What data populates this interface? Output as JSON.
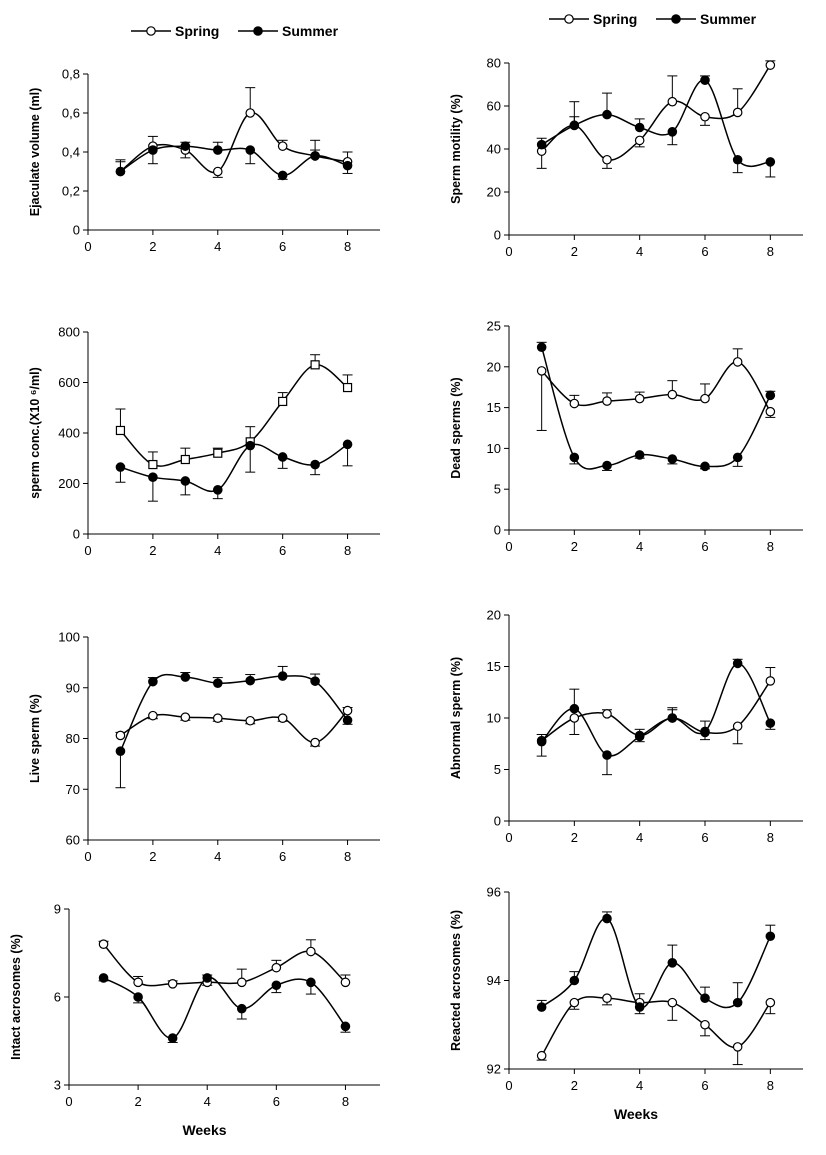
{
  "colors": {
    "line": "#000000",
    "background": "#ffffff",
    "open_marker_fill": "#ffffff",
    "filled_marker_fill": "#000000"
  },
  "chart_data": [
    {
      "type": "line",
      "ylabel": "Ejaculate volume (ml)",
      "xlabel": "",
      "xlim": [
        0,
        9
      ],
      "xticks": [
        0,
        2,
        4,
        6,
        8
      ],
      "ylim": [
        0,
        0.8
      ],
      "yticks": [
        0,
        0.2,
        0.4,
        0.6,
        0.8
      ],
      "ytick_labels": [
        "0",
        "0,2",
        "0,4",
        "0,6",
        "0,8"
      ],
      "grid": false,
      "legend": [
        "Spring",
        "Summer"
      ],
      "series": [
        {
          "name": "Spring",
          "marker": "open-circle",
          "x": [
            1,
            2,
            3,
            4,
            5,
            6,
            7,
            8
          ],
          "y": [
            0.3,
            0.43,
            0.41,
            0.3,
            0.6,
            0.43,
            0.38,
            0.35
          ],
          "err": [
            0.05,
            0.05,
            0.04,
            0.03,
            0.13,
            0.03,
            0.08,
            0.05
          ]
        },
        {
          "name": "Summer",
          "marker": "filled-circle",
          "x": [
            1,
            2,
            3,
            4,
            5,
            6,
            7,
            8
          ],
          "y": [
            0.3,
            0.41,
            0.43,
            0.41,
            0.41,
            0.28,
            0.38,
            0.33
          ],
          "err": [
            0.06,
            0.07,
            0.02,
            0.04,
            0.07,
            0.02,
            0.03,
            0.04
          ]
        }
      ]
    },
    {
      "type": "line",
      "ylabel": "Sperm motility (%)",
      "xlabel": "",
      "xlim": [
        0,
        9
      ],
      "xticks": [
        0,
        2,
        4,
        6,
        8
      ],
      "ylim": [
        0,
        80
      ],
      "yticks": [
        0,
        20,
        40,
        60,
        80
      ],
      "ytick_labels": [
        "0",
        "20",
        "40",
        "60",
        "80"
      ],
      "grid": false,
      "legend": [
        "Spring",
        "Summer"
      ],
      "series": [
        {
          "name": "Spring",
          "marker": "open-circle",
          "x": [
            1,
            2,
            3,
            4,
            5,
            6,
            7,
            8
          ],
          "y": [
            39,
            51,
            35,
            44,
            62,
            55,
            57,
            79
          ],
          "err": [
            8,
            4,
            4,
            3,
            12,
            4,
            11,
            2
          ]
        },
        {
          "name": "Summer",
          "marker": "filled-circle",
          "x": [
            1,
            2,
            3,
            4,
            5,
            6,
            7,
            8
          ],
          "y": [
            42,
            51,
            56,
            50,
            48,
            72,
            35,
            34
          ],
          "err": [
            3,
            11,
            10,
            4,
            6,
            2,
            6,
            7
          ]
        }
      ]
    },
    {
      "type": "line",
      "ylabel": "sperm conc.(X10 ⁶/ml)",
      "xlabel": "",
      "xlim": [
        0,
        9
      ],
      "xticks": [
        0,
        2,
        4,
        6,
        8
      ],
      "ylim": [
        0,
        800
      ],
      "yticks": [
        0,
        200,
        400,
        600,
        800
      ],
      "ytick_labels": [
        "0",
        "200",
        "400",
        "600",
        "800"
      ],
      "grid": false,
      "series": [
        {
          "name": "Spring",
          "marker": "open-square",
          "x": [
            1,
            2,
            3,
            4,
            5,
            6,
            7,
            8
          ],
          "y": [
            410,
            275,
            295,
            320,
            365,
            525,
            670,
            580
          ],
          "err": [
            85,
            50,
            45,
            20,
            60,
            35,
            40,
            50
          ]
        },
        {
          "name": "Summer",
          "marker": "filled-circle",
          "x": [
            1,
            2,
            3,
            4,
            5,
            6,
            7,
            8
          ],
          "y": [
            265,
            225,
            210,
            175,
            350,
            305,
            275,
            355
          ],
          "err": [
            60,
            95,
            55,
            35,
            105,
            45,
            40,
            85
          ]
        }
      ]
    },
    {
      "type": "line",
      "ylabel": "Dead sperms (%)",
      "xlabel": "",
      "xlim": [
        0,
        9
      ],
      "xticks": [
        0,
        2,
        4,
        6,
        8
      ],
      "ylim": [
        0,
        25
      ],
      "yticks": [
        0,
        5,
        10,
        15,
        20,
        25
      ],
      "ytick_labels": [
        "0",
        "5",
        "10",
        "15",
        "20",
        "25"
      ],
      "grid": false,
      "series": [
        {
          "name": "Spring",
          "marker": "open-circle",
          "x": [
            1,
            2,
            3,
            4,
            5,
            6,
            7,
            8
          ],
          "y": [
            19.5,
            15.5,
            15.8,
            16.1,
            16.6,
            16.1,
            20.6,
            14.5
          ],
          "err": [
            7.3,
            1.0,
            1.0,
            0.8,
            1.7,
            1.8,
            1.6,
            0.7
          ]
        },
        {
          "name": "Summer",
          "marker": "filled-circle",
          "x": [
            1,
            2,
            3,
            4,
            5,
            6,
            7,
            8
          ],
          "y": [
            22.4,
            8.9,
            7.9,
            9.2,
            8.7,
            7.8,
            8.9,
            16.5
          ],
          "err": [
            0.6,
            0.8,
            0.6,
            0.4,
            0.6,
            0.3,
            1.1,
            0.5
          ]
        }
      ]
    },
    {
      "type": "line",
      "ylabel": "Live sperm (%)",
      "xlabel": "",
      "xlim": [
        0,
        9
      ],
      "xticks": [
        0,
        2,
        4,
        6,
        8
      ],
      "ylim": [
        60,
        100
      ],
      "yticks": [
        60,
        70,
        80,
        90,
        100
      ],
      "ytick_labels": [
        "60",
        "70",
        "80",
        "90",
        "100"
      ],
      "grid": false,
      "series": [
        {
          "name": "Spring",
          "marker": "open-circle",
          "x": [
            1,
            2,
            3,
            4,
            5,
            6,
            7,
            8
          ],
          "y": [
            80.6,
            84.5,
            84.2,
            84.0,
            83.5,
            84.0,
            79.2,
            85.5
          ],
          "err": [
            0.6,
            0.6,
            0.6,
            0.6,
            0.6,
            0.6,
            0.7,
            0.6
          ]
        },
        {
          "name": "Summer",
          "marker": "filled-circle",
          "x": [
            1,
            2,
            3,
            4,
            5,
            6,
            7,
            8
          ],
          "y": [
            77.5,
            91.2,
            92.1,
            90.9,
            91.4,
            92.3,
            91.3,
            83.6
          ],
          "err": [
            7.2,
            0.8,
            0.9,
            1.1,
            1.2,
            1.9,
            1.4,
            0.8
          ]
        }
      ]
    },
    {
      "type": "line",
      "ylabel": "Abnormal sperm (%)",
      "xlabel": "",
      "xlim": [
        0,
        9
      ],
      "xticks": [
        0,
        2,
        4,
        6,
        8
      ],
      "ylim": [
        0,
        20
      ],
      "yticks": [
        0,
        5,
        10,
        15,
        20
      ],
      "ytick_labels": [
        "0",
        "5",
        "10",
        "15",
        "20"
      ],
      "grid": false,
      "series": [
        {
          "name": "Spring",
          "marker": "open-circle",
          "x": [
            1,
            2,
            3,
            4,
            5,
            6,
            7,
            8
          ],
          "y": [
            7.8,
            10.0,
            10.4,
            8.3,
            10.0,
            8.6,
            9.2,
            13.6
          ],
          "err": [
            0.6,
            1.6,
            0.4,
            0.6,
            0.8,
            0.7,
            1.7,
            1.3
          ]
        },
        {
          "name": "Summer",
          "marker": "filled-circle",
          "x": [
            1,
            2,
            3,
            4,
            5,
            6,
            7,
            8
          ],
          "y": [
            7.7,
            10.9,
            6.4,
            8.2,
            10.0,
            8.7,
            15.3,
            9.5
          ],
          "err": [
            1.4,
            1.9,
            1.9,
            0.5,
            1.0,
            1.0,
            0.4,
            0.6
          ]
        }
      ]
    },
    {
      "type": "line",
      "ylabel": "Intact acrosomes (%)",
      "xlabel": "Weeks",
      "xlim": [
        0,
        9
      ],
      "xticks": [
        0,
        2,
        4,
        6,
        8
      ],
      "ylim": [
        3,
        9
      ],
      "yticks": [
        3,
        6,
        9
      ],
      "ytick_labels": [
        "3",
        "6",
        "9"
      ],
      "grid": false,
      "series": [
        {
          "name": "Spring",
          "marker": "open-circle",
          "x": [
            1,
            2,
            3,
            4,
            5,
            6,
            7,
            8
          ],
          "y": [
            7.8,
            6.5,
            6.45,
            6.5,
            6.5,
            7.0,
            7.55,
            6.5
          ],
          "err": [
            0.1,
            0.2,
            0.1,
            0.1,
            0.45,
            0.25,
            0.4,
            0.25
          ]
        },
        {
          "name": "Summer",
          "marker": "filled-circle",
          "x": [
            1,
            2,
            3,
            4,
            5,
            6,
            7,
            8
          ],
          "y": [
            6.65,
            6.0,
            4.6,
            6.65,
            5.6,
            6.4,
            6.5,
            5.0
          ],
          "err": [
            0.1,
            0.2,
            0.15,
            0.1,
            0.35,
            0.25,
            0.4,
            0.2
          ]
        }
      ]
    },
    {
      "type": "line",
      "ylabel": "Reacted acrosomes (%)",
      "xlabel": "Weeks",
      "xlim": [
        0,
        9
      ],
      "xticks": [
        0,
        2,
        4,
        6,
        8
      ],
      "ylim": [
        92,
        96
      ],
      "yticks": [
        92,
        94,
        96
      ],
      "ytick_labels": [
        "92",
        "94",
        "96"
      ],
      "grid": false,
      "series": [
        {
          "name": "Spring",
          "marker": "open-circle",
          "x": [
            1,
            2,
            3,
            4,
            5,
            6,
            7,
            8
          ],
          "y": [
            92.3,
            93.5,
            93.6,
            93.5,
            93.5,
            93.0,
            92.5,
            93.5
          ],
          "err": [
            0.1,
            0.15,
            0.15,
            0.2,
            0.4,
            0.25,
            0.4,
            0.25
          ]
        },
        {
          "name": "Summer",
          "marker": "filled-circle",
          "x": [
            1,
            2,
            3,
            4,
            5,
            6,
            7,
            8
          ],
          "y": [
            93.4,
            94.0,
            95.4,
            93.4,
            94.4,
            93.6,
            93.5,
            95.0
          ],
          "err": [
            0.15,
            0.2,
            0.15,
            0.15,
            0.4,
            0.25,
            0.45,
            0.25
          ]
        }
      ]
    }
  ]
}
